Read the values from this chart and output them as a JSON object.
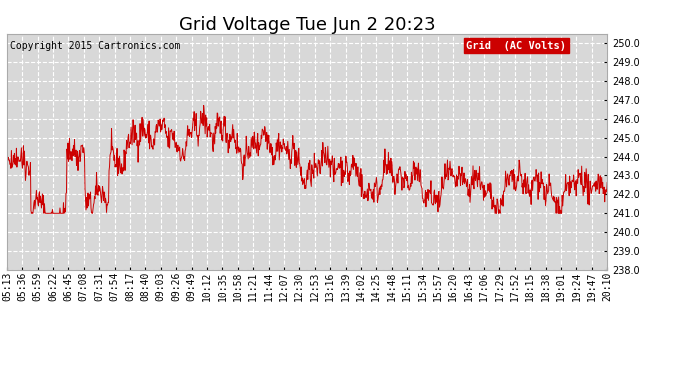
{
  "title": "Grid Voltage Tue Jun 2 20:23",
  "copyright_text": "Copyright 2015 Cartronics.com",
  "legend_label": "Grid  (AC Volts)",
  "legend_bg": "#cc0000",
  "legend_fg": "#ffffff",
  "line_color": "#cc0000",
  "bg_color": "#ffffff",
  "plot_bg_color": "#d8d8d8",
  "grid_color": "#ffffff",
  "ylim": [
    238.0,
    250.5
  ],
  "yticks": [
    238.0,
    239.0,
    240.0,
    241.0,
    242.0,
    243.0,
    244.0,
    245.0,
    246.0,
    247.0,
    248.0,
    249.0,
    250.0
  ],
  "xtick_labels": [
    "05:13",
    "05:36",
    "05:59",
    "06:22",
    "06:45",
    "07:08",
    "07:31",
    "07:54",
    "08:17",
    "08:40",
    "09:03",
    "09:26",
    "09:49",
    "10:12",
    "10:35",
    "10:58",
    "11:21",
    "11:44",
    "12:07",
    "12:30",
    "12:53",
    "13:16",
    "13:39",
    "14:02",
    "14:25",
    "14:48",
    "15:11",
    "15:34",
    "15:57",
    "16:20",
    "16:43",
    "17:06",
    "17:29",
    "17:52",
    "18:15",
    "18:38",
    "19:01",
    "19:24",
    "19:47",
    "20:10"
  ],
  "title_fontsize": 13,
  "tick_fontsize": 7,
  "copyright_fontsize": 7,
  "legend_fontsize": 7.5,
  "line_width": 0.7,
  "seed": 42
}
